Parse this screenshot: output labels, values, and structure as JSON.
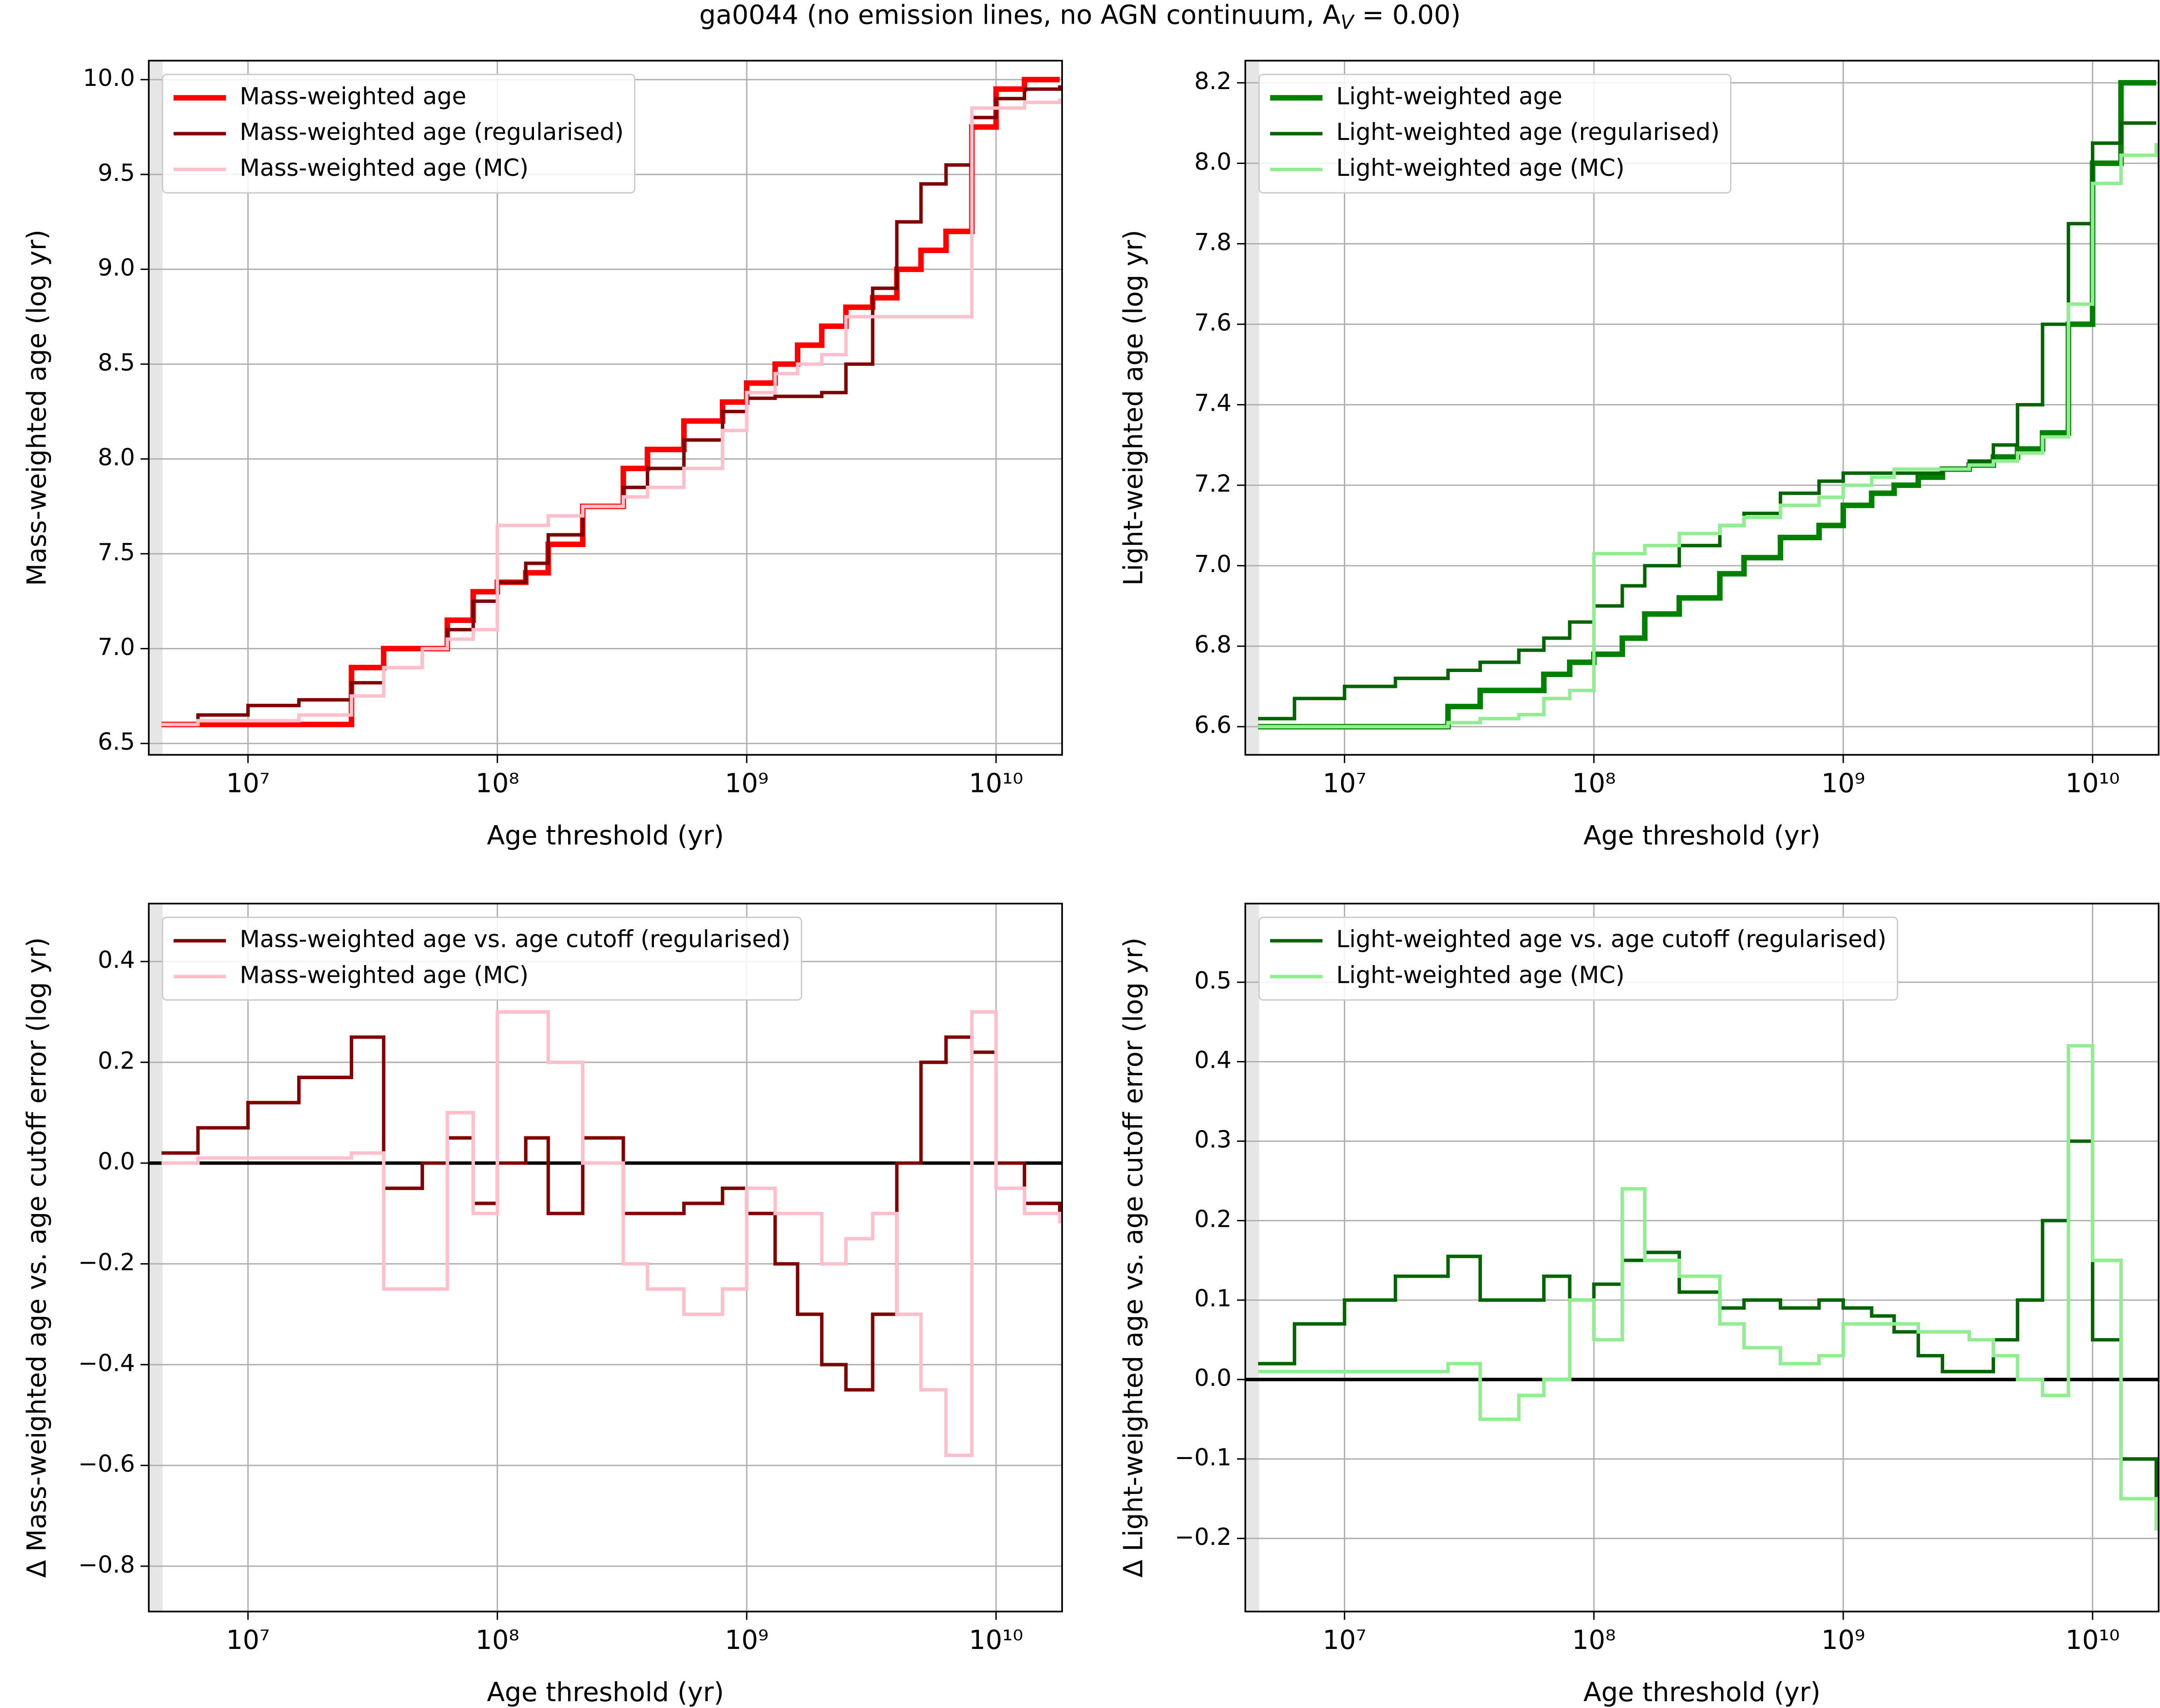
{
  "chart_data": [
    {
      "type": "line",
      "ylabel": "Mass-weighted age (log yr)",
      "xlabel": "Age threshold (yr)",
      "xlog": true,
      "grid": true,
      "legend": "upper left",
      "title": "ga0044 (no emission lines, no AGN continuum,  A",
      "title_subscript": "V",
      "title_end": " = 0.00)",
      "xlim": [
        4000000,
        18400000000
      ],
      "ylim": [
        6.44,
        10.1
      ],
      "xticks": [
        {
          "value": 10000000,
          "label": "10⁷"
        },
        {
          "value": 100000000,
          "label": "10⁸"
        },
        {
          "value": 1000000000,
          "label": "10⁹"
        },
        {
          "value": 10000000000,
          "label": "10¹⁰"
        }
      ],
      "yticks": [
        6.5,
        {
          "value": 7,
          "label": "7.0"
        },
        7.5,
        {
          "value": 8,
          "label": "8.0"
        },
        8.5,
        {
          "value": 9,
          "label": "9.0"
        },
        9.5,
        {
          "value": 10,
          "label": "10.0"
        }
      ],
      "x": [
        4500000,
        6300000,
        10000000,
        16000000,
        26000000,
        35000000,
        50000000,
        63000000,
        80000000,
        100000000,
        130000000,
        160000000,
        220000000,
        320000000,
        400000000,
        560000000,
        800000000,
        1000000000,
        1300000000,
        1600000000,
        2000000000,
        2500000000,
        3200000000,
        4000000000,
        5000000000,
        6300000000,
        8000000000,
        10000000000,
        13000000000,
        18000000000
      ],
      "series": [
        {
          "name": "Mass-weighted age",
          "color": "#ff0000",
          "width": 4,
          "values": [
            6.6,
            6.6,
            6.6,
            6.6,
            6.9,
            7.0,
            7.0,
            7.15,
            7.3,
            7.35,
            7.4,
            7.55,
            7.75,
            7.95,
            8.05,
            8.2,
            8.3,
            8.4,
            8.5,
            8.6,
            8.7,
            8.8,
            8.85,
            9.0,
            9.1,
            9.2,
            9.75,
            9.95,
            10.0,
            10.0
          ]
        },
        {
          "name": "Mass-weighted age (regularised)",
          "color": "#800000",
          "width": 2.5,
          "values": [
            6.6,
            6.65,
            6.7,
            6.73,
            6.82,
            6.9,
            7.0,
            7.1,
            7.25,
            7.35,
            7.45,
            7.6,
            7.75,
            7.85,
            7.95,
            8.1,
            8.25,
            8.32,
            8.33,
            8.33,
            8.35,
            8.5,
            8.9,
            9.25,
            9.45,
            9.55,
            9.8,
            9.9,
            9.95,
            9.97
          ]
        },
        {
          "name": "Mass-weighted age (MC)",
          "color": "#ffc0cb",
          "width": 2.5,
          "values": [
            6.6,
            6.62,
            6.62,
            6.65,
            6.75,
            6.9,
            7.0,
            7.05,
            7.1,
            7.65,
            7.65,
            7.7,
            7.75,
            7.8,
            7.85,
            7.95,
            8.15,
            8.35,
            8.45,
            8.5,
            8.55,
            8.75,
            8.75,
            8.75,
            8.75,
            8.75,
            9.85,
            9.85,
            9.88,
            9.9
          ]
        }
      ]
    },
    {
      "type": "line",
      "ylabel": "Light-weighted age (log yr)",
      "xlabel": "Age threshold (yr)",
      "xlog": true,
      "grid": true,
      "legend": "upper left",
      "xlim": [
        4000000,
        18400000000
      ],
      "ylim": [
        6.53,
        8.255
      ],
      "xticks": [
        {
          "value": 10000000,
          "label": "10⁷"
        },
        {
          "value": 100000000,
          "label": "10⁸"
        },
        {
          "value": 1000000000,
          "label": "10⁹"
        },
        {
          "value": 10000000000,
          "label": "10¹⁰"
        }
      ],
      "yticks": [
        6.6,
        6.8,
        {
          "value": 7,
          "label": "7.0"
        },
        7.2,
        7.4,
        7.6,
        7.8,
        {
          "value": 8,
          "label": "8.0"
        },
        8.2
      ],
      "x": [
        4500000,
        6300000,
        10000000,
        16000000,
        26000000,
        35000000,
        50000000,
        63000000,
        80000000,
        100000000,
        130000000,
        160000000,
        220000000,
        320000000,
        400000000,
        560000000,
        800000000,
        1000000000,
        1300000000,
        1600000000,
        2000000000,
        2500000000,
        3200000000,
        4000000000,
        5000000000,
        6300000000,
        8000000000,
        10000000000,
        13000000000,
        18000000000
      ],
      "series": [
        {
          "name": "Light-weighted age",
          "color": "#008000",
          "width": 4,
          "values": [
            6.6,
            6.6,
            6.6,
            6.6,
            6.65,
            6.69,
            6.69,
            6.73,
            6.76,
            6.78,
            6.82,
            6.88,
            6.92,
            6.98,
            7.02,
            7.07,
            7.1,
            7.15,
            7.18,
            7.2,
            7.22,
            7.24,
            7.25,
            7.27,
            7.29,
            7.33,
            7.6,
            8.0,
            8.2,
            8.2
          ]
        },
        {
          "name": "Light-weighted age (regularised)",
          "color": "#006400",
          "width": 2.5,
          "values": [
            6.62,
            6.67,
            6.7,
            6.72,
            6.74,
            6.76,
            6.79,
            6.82,
            6.86,
            6.9,
            6.95,
            7.0,
            7.05,
            7.1,
            7.13,
            7.18,
            7.21,
            7.23,
            7.23,
            7.23,
            7.23,
            7.24,
            7.26,
            7.3,
            7.4,
            7.6,
            7.85,
            8.05,
            8.1,
            8.1
          ]
        },
        {
          "name": "Light-weighted age (MC)",
          "color": "#90ee90",
          "width": 2.5,
          "values": [
            6.6,
            6.6,
            6.6,
            6.6,
            6.61,
            6.62,
            6.63,
            6.67,
            6.69,
            7.03,
            7.03,
            7.05,
            7.08,
            7.1,
            7.12,
            7.15,
            7.17,
            7.2,
            7.22,
            7.24,
            7.24,
            7.24,
            7.25,
            7.26,
            7.28,
            7.32,
            7.65,
            7.95,
            8.02,
            8.05
          ]
        }
      ]
    },
    {
      "type": "line",
      "ylabel": "Δ Mass-weighted age vs. age cutoff error (log yr)",
      "xlabel": "Age threshold (yr)",
      "xlog": true,
      "grid": true,
      "legend": "upper left",
      "hline": 0,
      "xlim": [
        4000000,
        18400000000
      ],
      "ylim": [
        -0.89,
        0.515
      ],
      "xticks": [
        {
          "value": 10000000,
          "label": "10⁷"
        },
        {
          "value": 100000000,
          "label": "10⁸"
        },
        {
          "value": 1000000000,
          "label": "10⁹"
        },
        {
          "value": 10000000000,
          "label": "10¹⁰"
        }
      ],
      "yticks": [
        {
          "value": -0.8,
          "label": "−0.8"
        },
        {
          "value": -0.6,
          "label": "−0.6"
        },
        {
          "value": -0.4,
          "label": "−0.4"
        },
        {
          "value": -0.2,
          "label": "−0.2"
        },
        {
          "value": 0,
          "label": "0.0"
        },
        0.2,
        0.4
      ],
      "x": [
        4500000,
        6300000,
        10000000,
        16000000,
        26000000,
        35000000,
        50000000,
        63000000,
        80000000,
        100000000,
        130000000,
        160000000,
        220000000,
        320000000,
        400000000,
        560000000,
        800000000,
        1000000000,
        1300000000,
        1600000000,
        2000000000,
        2500000000,
        3200000000,
        4000000000,
        5000000000,
        6300000000,
        8000000000,
        10000000000,
        13000000000,
        18000000000
      ],
      "series": [
        {
          "name": "Mass-weighted age vs. age cutoff (regularised)",
          "color": "#800000",
          "width": 2.5,
          "values": [
            0.02,
            0.07,
            0.12,
            0.17,
            0.25,
            -0.05,
            0.0,
            0.05,
            -0.08,
            0.0,
            0.05,
            -0.1,
            0.05,
            -0.1,
            -0.1,
            -0.08,
            -0.05,
            -0.1,
            -0.2,
            -0.3,
            -0.4,
            -0.45,
            -0.3,
            0.0,
            0.2,
            0.25,
            0.22,
            0.0,
            -0.08,
            -0.1
          ]
        },
        {
          "name": "Mass-weighted age (MC)",
          "color": "#ffc0cb",
          "width": 2.5,
          "values": [
            0.0,
            0.01,
            0.01,
            0.01,
            0.02,
            -0.25,
            -0.25,
            0.1,
            -0.1,
            0.3,
            0.3,
            0.2,
            0.0,
            -0.2,
            -0.25,
            -0.3,
            -0.25,
            -0.05,
            -0.1,
            -0.1,
            -0.2,
            -0.15,
            -0.1,
            -0.3,
            -0.45,
            -0.58,
            0.3,
            -0.05,
            -0.1,
            -0.12
          ]
        }
      ]
    },
    {
      "type": "line",
      "ylabel": "Δ Light-weighted age vs. age cutoff error (log yr)",
      "xlabel": "Age threshold (yr)",
      "xlog": true,
      "grid": true,
      "legend": "upper left",
      "hline": 0,
      "xlim": [
        4000000,
        18400000000
      ],
      "ylim": [
        -0.292,
        0.599
      ],
      "xticks": [
        {
          "value": 10000000,
          "label": "10⁷"
        },
        {
          "value": 100000000,
          "label": "10⁸"
        },
        {
          "value": 1000000000,
          "label": "10⁹"
        },
        {
          "value": 10000000000,
          "label": "10¹⁰"
        }
      ],
      "yticks": [
        {
          "value": -0.2,
          "label": "−0.2"
        },
        {
          "value": -0.1,
          "label": "−0.1"
        },
        {
          "value": 0,
          "label": "0.0"
        },
        0.1,
        0.2,
        0.3,
        0.4,
        0.5
      ],
      "x": [
        4500000,
        6300000,
        10000000,
        16000000,
        26000000,
        35000000,
        50000000,
        63000000,
        80000000,
        100000000,
        130000000,
        160000000,
        220000000,
        320000000,
        400000000,
        560000000,
        800000000,
        1000000000,
        1300000000,
        1600000000,
        2000000000,
        2500000000,
        3200000000,
        4000000000,
        5000000000,
        6300000000,
        8000000000,
        10000000000,
        13000000000,
        18000000000
      ],
      "series": [
        {
          "name": "Light-weighted age vs. age cutoff (regularised)",
          "color": "#006400",
          "width": 2.5,
          "values": [
            0.02,
            0.07,
            0.1,
            0.13,
            0.155,
            0.1,
            0.1,
            0.13,
            0.1,
            0.12,
            0.15,
            0.16,
            0.11,
            0.09,
            0.1,
            0.09,
            0.1,
            0.09,
            0.08,
            0.06,
            0.03,
            0.01,
            0.01,
            0.05,
            0.1,
            0.2,
            0.3,
            0.05,
            -0.1,
            -0.17
          ]
        },
        {
          "name": "Light-weighted age (MC)",
          "color": "#90ee90",
          "width": 2.5,
          "values": [
            0.01,
            0.01,
            0.01,
            0.01,
            0.02,
            -0.05,
            -0.02,
            0.0,
            0.1,
            0.05,
            0.24,
            0.15,
            0.13,
            0.07,
            0.04,
            0.02,
            0.03,
            0.07,
            0.07,
            0.07,
            0.06,
            0.06,
            0.05,
            0.03,
            0.0,
            -0.02,
            0.42,
            0.15,
            -0.15,
            -0.19
          ]
        }
      ]
    }
  ]
}
